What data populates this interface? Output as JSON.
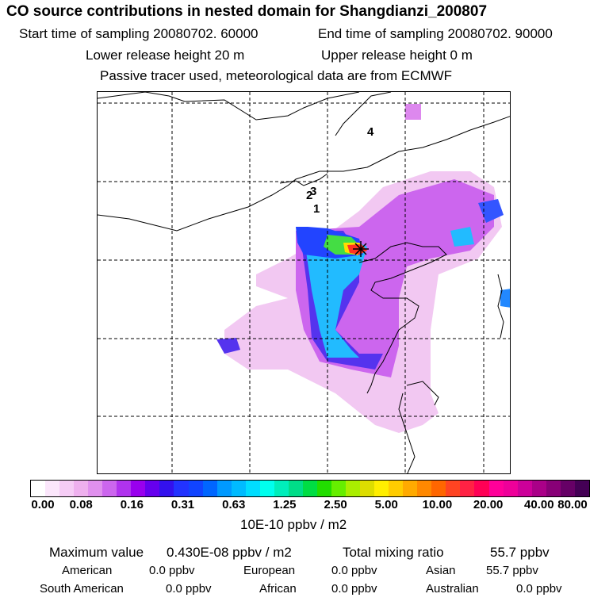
{
  "header": {
    "title": "CO  source contributions in nested domain for Shangdianzi_200807",
    "start_label": "Start time of sampling 20080702. 60000",
    "end_label": "End time of sampling 20080702. 90000",
    "lower_label": "Lower release height   20 m",
    "upper_label": "Upper release height    0 m",
    "tracer_note": "Passive tracer used, meteorological data are from ECMWF"
  },
  "map": {
    "labels": [
      "4",
      "3",
      "2",
      "1"
    ],
    "receptor": "Shangdianzi"
  },
  "colorbar": {
    "ticks": [
      "0.00",
      "0.08",
      "0.16",
      "0.31",
      "0.63",
      "1.25",
      "2.50",
      "5.00",
      "10.00",
      "20.00",
      "40.00",
      "80.00"
    ],
    "colors": [
      "#ffffff",
      "#fbe6fb",
      "#f5ccf5",
      "#eeb0ee",
      "#e090ee",
      "#cc66ee",
      "#b033ee",
      "#9900ee",
      "#6600ee",
      "#3311ee",
      "#2233ff",
      "#1144ff",
      "#0066ff",
      "#0099ff",
      "#00bbff",
      "#00ddff",
      "#00ffee",
      "#00eebb",
      "#00dd88",
      "#00dd44",
      "#22dd00",
      "#66ee00",
      "#aaee00",
      "#dddd00",
      "#ffee00",
      "#ffcc00",
      "#ffaa00",
      "#ff8800",
      "#ff6600",
      "#ff4422",
      "#ff2244",
      "#ff0055",
      "#ff0099",
      "#ee0099",
      "#cc0099",
      "#aa0088",
      "#880077",
      "#660066",
      "#440055"
    ],
    "units": "10E-10 ppbv / m2"
  },
  "stats": {
    "max_label": "Maximum value",
    "max_value": "0.430E-08 ppbv / m2",
    "total_label": "Total mixing ratio",
    "total_value": "55.7 ppbv",
    "regions": [
      {
        "name": "American",
        "value": "0.0 ppbv"
      },
      {
        "name": "European",
        "value": "0.0 ppbv"
      },
      {
        "name": "Asian",
        "value": "55.7 ppbv"
      },
      {
        "name": "South American",
        "value": "0.0 ppbv"
      },
      {
        "name": "African",
        "value": "0.0 ppbv"
      },
      {
        "name": "Australian",
        "value": "0.0 ppbv"
      }
    ]
  }
}
